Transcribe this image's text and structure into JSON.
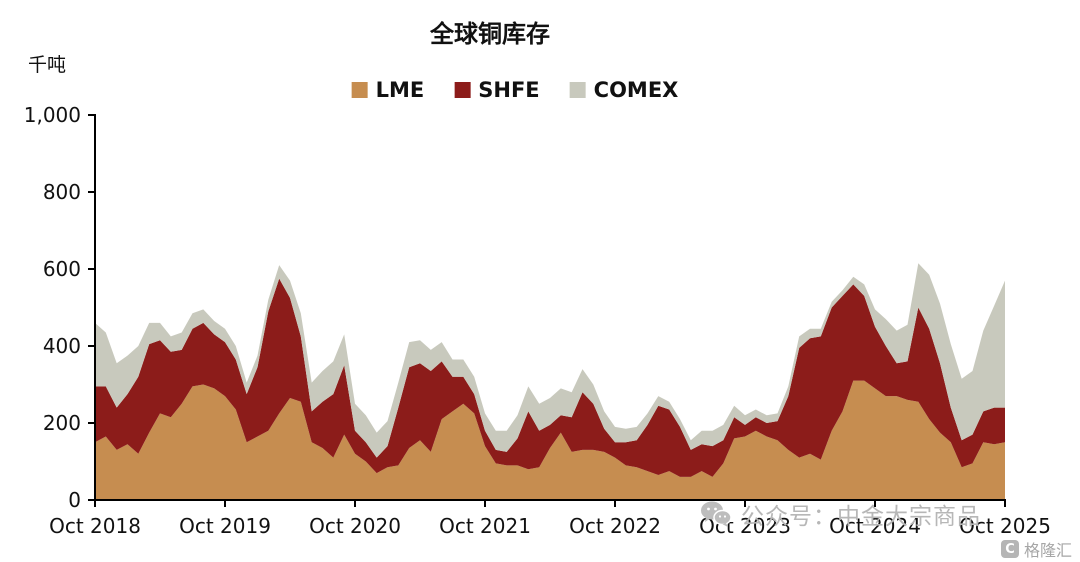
{
  "page": {
    "background": "#ffffff"
  },
  "chart": {
    "title": "全球铜库存",
    "unit": "千吨"
  },
  "watermark": {
    "text": "公众号：中金大宗商品"
  },
  "corner_logo": {
    "badge": "C",
    "text": "格隆汇"
  },
  "chart_data": {
    "type": "area",
    "stacked": true,
    "title": "全球铜库存",
    "xlabel": "",
    "ylabel": "千吨",
    "ylim": [
      0,
      1000
    ],
    "y_tick_step": 200,
    "y_ticks": [
      "0",
      "200",
      "400",
      "600",
      "800",
      "1,000"
    ],
    "grid": false,
    "legend_position": "top",
    "x_frequency": "monthly",
    "x_start": "Oct 2018",
    "x_end": "Oct 2025",
    "x_tick_labels": [
      "Oct 2018",
      "Oct 2019",
      "Oct 2020",
      "Oct 2021",
      "Oct 2022",
      "Oct 2023",
      "Oct 2024",
      "Oct 2025"
    ],
    "axis_color": "#000000",
    "series": [
      {
        "name": "LME",
        "color": "#C68D50",
        "values": [
          150,
          165,
          130,
          145,
          120,
          175,
          225,
          215,
          250,
          295,
          300,
          290,
          270,
          235,
          150,
          165,
          180,
          225,
          265,
          255,
          150,
          135,
          110,
          170,
          120,
          100,
          70,
          85,
          90,
          135,
          155,
          125,
          210,
          230,
          250,
          225,
          140,
          95,
          90,
          90,
          80,
          85,
          135,
          175,
          125,
          130,
          130,
          125,
          110,
          90,
          85,
          75,
          65,
          75,
          60,
          60,
          75,
          60,
          95,
          160,
          165,
          180,
          165,
          155,
          130,
          110,
          120,
          105,
          180,
          230,
          310,
          310,
          290,
          270,
          270,
          260,
          255,
          210,
          175,
          150,
          85,
          95,
          150,
          145,
          150
        ]
      },
      {
        "name": "SHFE",
        "color": "#8C1C1A",
        "values": [
          145,
          130,
          110,
          130,
          200,
          230,
          190,
          170,
          140,
          150,
          160,
          140,
          140,
          130,
          125,
          180,
          310,
          350,
          260,
          170,
          80,
          120,
          165,
          180,
          60,
          50,
          40,
          55,
          150,
          210,
          200,
          210,
          150,
          90,
          70,
          50,
          40,
          35,
          35,
          70,
          150,
          95,
          60,
          45,
          90,
          150,
          120,
          60,
          40,
          60,
          70,
          120,
          180,
          160,
          130,
          70,
          70,
          80,
          60,
          55,
          30,
          35,
          35,
          50,
          140,
          285,
          300,
          320,
          320,
          300,
          250,
          220,
          160,
          130,
          85,
          100,
          245,
          235,
          180,
          90,
          70,
          75,
          80,
          95,
          90
        ]
      },
      {
        "name": "COMEX",
        "color": "#C8C9BD",
        "values": [
          165,
          140,
          115,
          100,
          80,
          55,
          45,
          40,
          45,
          40,
          35,
          35,
          35,
          35,
          30,
          30,
          30,
          35,
          45,
          60,
          75,
          80,
          85,
          80,
          70,
          70,
          65,
          65,
          65,
          65,
          60,
          55,
          50,
          45,
          45,
          45,
          45,
          50,
          55,
          60,
          65,
          70,
          70,
          70,
          65,
          60,
          50,
          45,
          40,
          35,
          35,
          30,
          25,
          20,
          20,
          25,
          35,
          40,
          40,
          30,
          25,
          20,
          20,
          20,
          25,
          30,
          25,
          20,
          15,
          15,
          20,
          30,
          45,
          70,
          85,
          95,
          115,
          140,
          155,
          165,
          160,
          165,
          210,
          265,
          330
        ]
      }
    ]
  }
}
